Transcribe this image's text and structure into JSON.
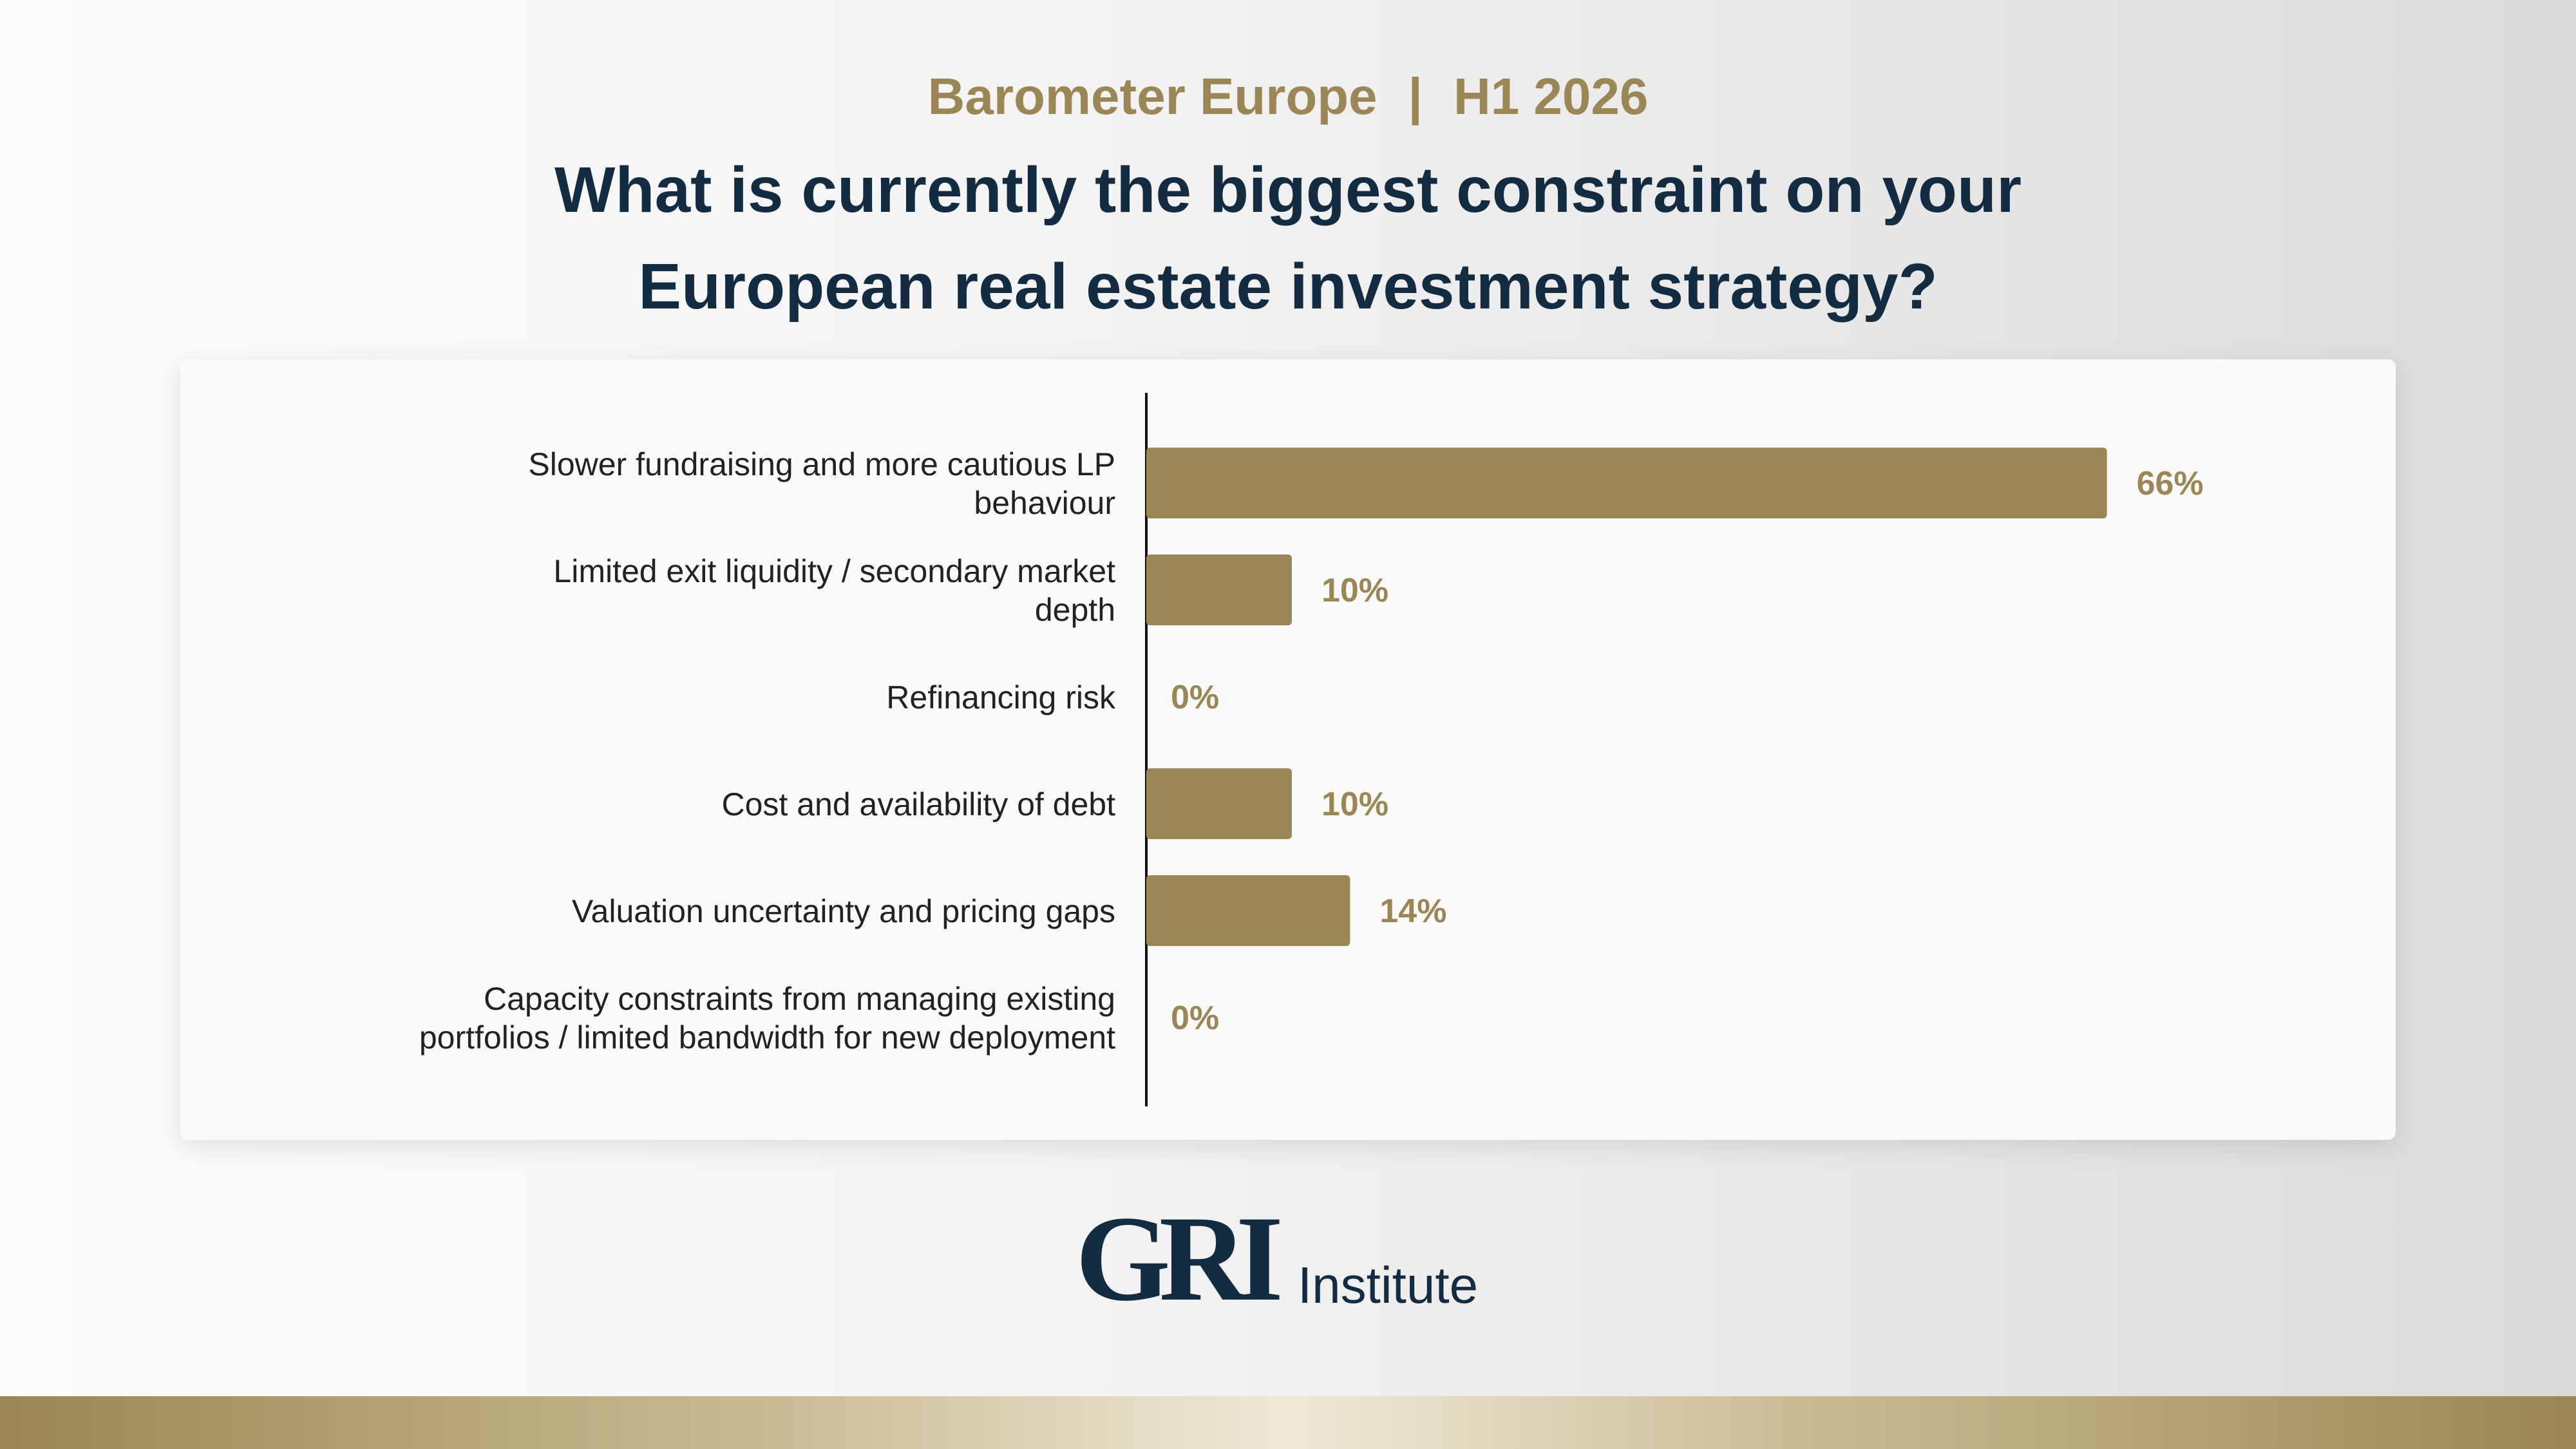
{
  "header": {
    "supertitle_left": "Barometer Europe",
    "supertitle_sep": "|",
    "supertitle_right": "H1 2026",
    "title_line1": "What is currently the biggest constraint on your",
    "title_line2": "European real estate investment strategy?"
  },
  "logo": {
    "mark": "GRI",
    "word": "Institute"
  },
  "colors": {
    "bar": "#9b8755",
    "title": "#132c41",
    "accent": "#9b8755"
  },
  "chart_data": {
    "type": "bar",
    "orientation": "horizontal",
    "categories": [
      [
        "Slower fundraising and more cautious LP",
        "behaviour"
      ],
      [
        "Limited exit liquidity / secondary market",
        "depth"
      ],
      [
        "Refinancing risk"
      ],
      [
        "Cost and availability of debt"
      ],
      [
        "Valuation uncertainty and pricing gaps"
      ],
      [
        "Capacity constraints from managing existing",
        "portfolios / limited bandwidth for new deployment"
      ]
    ],
    "values": [
      66,
      10,
      0,
      10,
      14,
      0
    ],
    "value_labels": [
      "66%",
      "10%",
      "0%",
      "10%",
      "14%",
      "0%"
    ],
    "unit": "%",
    "xlim": [
      0,
      100
    ],
    "grid": false,
    "legend": "none"
  }
}
